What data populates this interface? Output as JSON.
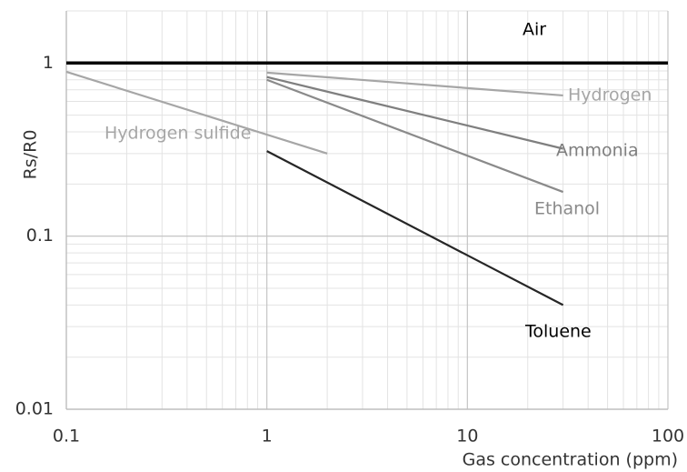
{
  "chart_data": {
    "type": "line",
    "x_label": "Gas concentration (ppm)",
    "y_label": "Rs/R0",
    "xlim": [
      0.1,
      100
    ],
    "ylim": [
      0.01,
      2
    ],
    "xticks": [
      0.1,
      1,
      10,
      100
    ],
    "yticks": [
      0.01,
      0.1,
      1
    ],
    "xscale": "log",
    "yscale": "log",
    "grid": true,
    "minor_grid": true,
    "series": [
      {
        "name": "Air",
        "color": "#000000",
        "x": [
          0.1,
          100
        ],
        "values": [
          1,
          1
        ]
      },
      {
        "name": "Hydrogen",
        "color": "#a6a6a6",
        "x": [
          1,
          30
        ],
        "values": [
          0.88,
          0.65
        ]
      },
      {
        "name": "Ammonia",
        "color": "#7f7f7f",
        "x": [
          1,
          30
        ],
        "values": [
          0.83,
          0.32
        ]
      },
      {
        "name": "Ethanol",
        "color": "#8a8a8a",
        "x": [
          1,
          30
        ],
        "values": [
          0.8,
          0.18
        ]
      },
      {
        "name": "Toluene",
        "color": "#262626",
        "x": [
          1,
          30
        ],
        "values": [
          0.31,
          0.04
        ]
      },
      {
        "name": "Hydrogen sulfide",
        "color": "#a6a6a6",
        "x": [
          0.1,
          2
        ],
        "values": [
          0.89,
          0.3
        ]
      }
    ]
  }
}
